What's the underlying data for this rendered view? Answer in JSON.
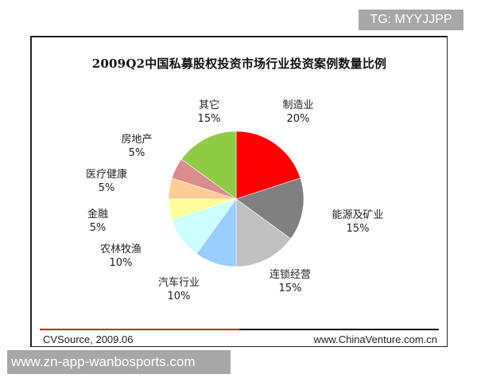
{
  "chart_data": {
    "type": "pie",
    "title": "2009Q2中国私募股权投资市场行业投资案例数量比例",
    "unit": "%",
    "start_angle": "12 o'clock, clockwise",
    "slices": [
      {
        "label": "制造业",
        "value": 20,
        "display": "20%",
        "color": "#ff0000"
      },
      {
        "label": "能源及矿业",
        "value": 15,
        "display": "15%",
        "color": "#808080"
      },
      {
        "label": "连锁经营",
        "value": 15,
        "display": "15%",
        "color": "#c0c0c0"
      },
      {
        "label": "汽车行业",
        "value": 10,
        "display": "10%",
        "color": "#99ccff"
      },
      {
        "label": "农林牧渔",
        "value": 10,
        "display": "10%",
        "color": "#ccffff"
      },
      {
        "label": "金融",
        "value": 5,
        "display": "5%",
        "color": "#ffff99"
      },
      {
        "label": "医疗健康",
        "value": 5,
        "display": "5%",
        "color": "#ffcc99"
      },
      {
        "label": "房地产",
        "value": 5,
        "display": "5%",
        "color": "#d98c8c"
      },
      {
        "label": "其它",
        "value": 15,
        "display": "15%",
        "color": "#8fcc44"
      }
    ],
    "legend": "none (data labels beside slices)"
  },
  "footer": {
    "source": "CVSource, 2009.06",
    "website": "www.ChinaVenture.com.cn",
    "rule_colors": [
      "#c8262d",
      "#111111"
    ]
  },
  "watermarks": {
    "top_right": "TG: MYYJJPP",
    "bottom_left": "www.zn-app-wanbosports.com"
  }
}
